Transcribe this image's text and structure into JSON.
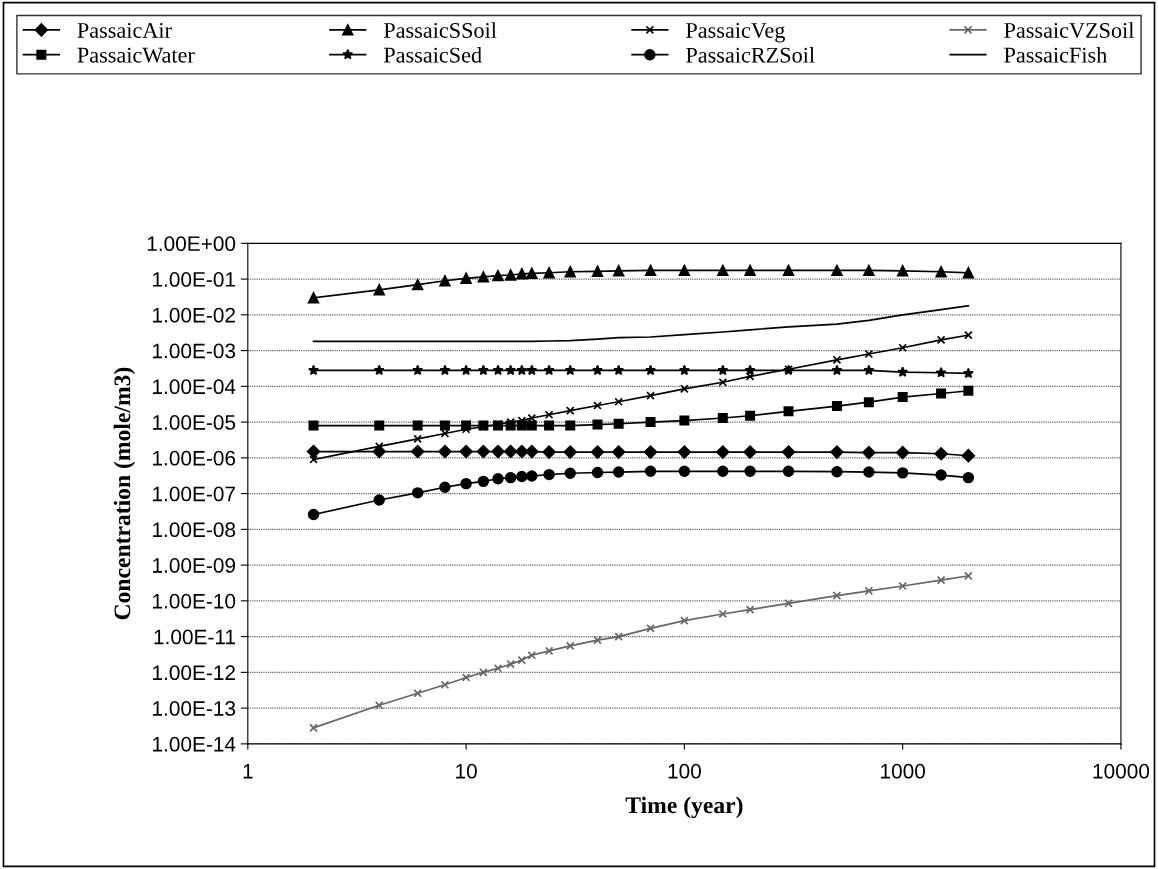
{
  "chart_data": {
    "type": "line",
    "xlabel": "Time (year)",
    "ylabel": "Concentration (mole/m3)",
    "log": "xy",
    "x": [
      2,
      4,
      6,
      8,
      10,
      12,
      14,
      16,
      18,
      20,
      24,
      30,
      40,
      50,
      70,
      100,
      150,
      200,
      300,
      500,
      700,
      1000,
      1500,
      2000
    ],
    "xlim": [
      1,
      10000
    ],
    "xticks": [
      1,
      10,
      100,
      1000,
      10000
    ],
    "ylim": [
      1e-14,
      1
    ],
    "yticks": [
      {
        "value": 1,
        "label": "1.00E+00"
      },
      {
        "value": 0.1,
        "label": "1.00E-01"
      },
      {
        "value": 0.01,
        "label": "1.00E-02"
      },
      {
        "value": 0.001,
        "label": "1.00E-03"
      },
      {
        "value": 0.0001,
        "label": "1.00E-04"
      },
      {
        "value": 1e-05,
        "label": "1.00E-05"
      },
      {
        "value": 1e-06,
        "label": "1.00E-06"
      },
      {
        "value": 1e-07,
        "label": "1.00E-07"
      },
      {
        "value": 1e-08,
        "label": "1.00E-08"
      },
      {
        "value": 1e-09,
        "label": "1.00E-09"
      },
      {
        "value": 1e-10,
        "label": "1.00E-10"
      },
      {
        "value": 1e-11,
        "label": "1.00E-11"
      },
      {
        "value": 1e-12,
        "label": "1.00E-12"
      },
      {
        "value": 1e-13,
        "label": "1.00E-13"
      },
      {
        "value": 1e-14,
        "label": "1.00E-14"
      }
    ],
    "grid": "y",
    "legend": "top",
    "series": [
      {
        "name": "PassaicAir",
        "color": "#000000",
        "marker": "diamond",
        "values": [
          1.5e-06,
          1.5e-06,
          1.5e-06,
          1.5e-06,
          1.5e-06,
          1.5e-06,
          1.5e-06,
          1.5e-06,
          1.5e-06,
          1.5e-06,
          1.45e-06,
          1.45e-06,
          1.45e-06,
          1.45e-06,
          1.45e-06,
          1.45e-06,
          1.45e-06,
          1.45e-06,
          1.45e-06,
          1.45e-06,
          1.4e-06,
          1.4e-06,
          1.3e-06,
          1.15e-06
        ]
      },
      {
        "name": "PassaicWater",
        "color": "#000000",
        "marker": "square",
        "values": [
          8e-06,
          8e-06,
          8e-06,
          8e-06,
          8e-06,
          8e-06,
          8e-06,
          8e-06,
          8e-06,
          8e-06,
          8e-06,
          8e-06,
          8.5e-06,
          9e-06,
          1e-05,
          1.1e-05,
          1.3e-05,
          1.5e-05,
          2e-05,
          2.8e-05,
          3.6e-05,
          5e-05,
          6.3e-05,
          7.5e-05
        ]
      },
      {
        "name": "PassaicSSoil",
        "color": "#000000",
        "marker": "triangle",
        "values": [
          0.03,
          0.05,
          0.07,
          0.09,
          0.105,
          0.115,
          0.125,
          0.13,
          0.14,
          0.145,
          0.15,
          0.16,
          0.165,
          0.17,
          0.175,
          0.175,
          0.175,
          0.175,
          0.175,
          0.175,
          0.175,
          0.17,
          0.16,
          0.15
        ]
      },
      {
        "name": "PassaicSed",
        "color": "#000000",
        "marker": "star",
        "values": [
          0.00028,
          0.00028,
          0.00028,
          0.00028,
          0.00028,
          0.00028,
          0.00028,
          0.00028,
          0.00028,
          0.00028,
          0.00028,
          0.00028,
          0.00028,
          0.00028,
          0.00028,
          0.00028,
          0.00028,
          0.00028,
          0.00028,
          0.00028,
          0.00028,
          0.00025,
          0.00024,
          0.00023
        ]
      },
      {
        "name": "PassaicVeg",
        "color": "#000000",
        "marker": "cross",
        "values": [
          9e-07,
          2.1e-06,
          3.4e-06,
          4.8e-06,
          6.3e-06,
          7.4e-06,
          8.7e-06,
          1e-05,
          1.1e-05,
          1.3e-05,
          1.6e-05,
          2.1e-05,
          2.9e-05,
          3.7e-05,
          5.5e-05,
          8.5e-05,
          0.00013,
          0.00019,
          0.0003,
          0.00055,
          0.0008,
          0.0012,
          0.002,
          0.0027
        ]
      },
      {
        "name": "PassaicRZSoil",
        "color": "#000000",
        "marker": "circle",
        "values": [
          2.6e-08,
          6.6e-08,
          1.05e-07,
          1.5e-07,
          1.9e-07,
          2.2e-07,
          2.6e-07,
          2.8e-07,
          3e-07,
          3.1e-07,
          3.4e-07,
          3.7e-07,
          3.9e-07,
          4e-07,
          4.2e-07,
          4.2e-07,
          4.2e-07,
          4.2e-07,
          4.2e-07,
          4.1e-07,
          4e-07,
          3.8e-07,
          3.3e-07,
          2.8e-07
        ]
      },
      {
        "name": "PassaicVZSoil",
        "color": "#666666",
        "marker": "cross",
        "values": [
          2.8e-14,
          1.2e-13,
          2.6e-13,
          4.5e-13,
          7.2e-13,
          1e-12,
          1.3e-12,
          1.7e-12,
          2.2e-12,
          3e-12,
          4e-12,
          5.5e-12,
          8e-12,
          1e-11,
          1.7e-11,
          2.8e-11,
          4.3e-11,
          5.7e-11,
          8.5e-11,
          1.4e-10,
          1.9e-10,
          2.6e-10,
          3.8e-10,
          5e-10
        ]
      },
      {
        "name": "PassaicFish",
        "color": "#000000",
        "marker": "none",
        "values": [
          0.0018,
          0.0018,
          0.0018,
          0.0018,
          0.0018,
          0.0018,
          0.0018,
          0.0018,
          0.0018,
          0.0018,
          0.00185,
          0.0019,
          0.0021,
          0.0023,
          0.0024,
          0.0028,
          0.0033,
          0.0038,
          0.0046,
          0.0055,
          0.007,
          0.01,
          0.014,
          0.018
        ]
      }
    ]
  }
}
